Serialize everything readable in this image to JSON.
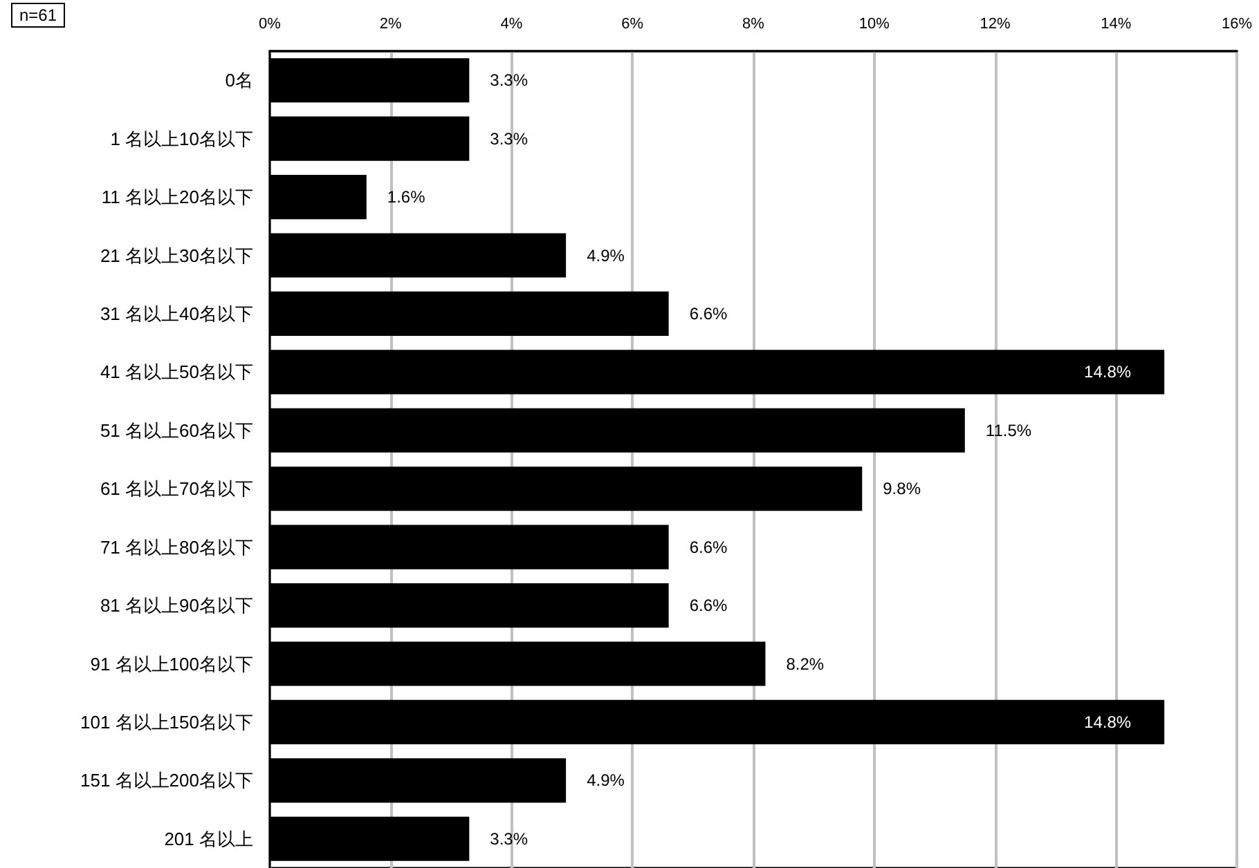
{
  "chart_data": {
    "type": "bar",
    "orientation": "horizontal",
    "categories": [
      "0名",
      "1 名以上10名以下",
      "11 名以上20名以下",
      "21 名以上30名以下",
      "31 名以上40名以下",
      "41 名以上50名以下",
      "51 名以上60名以下",
      "61 名以上70名以下",
      "71 名以上80名以下",
      "81 名以上90名以下",
      "91 名以上100名以下",
      "101 名以上150名以下",
      "151 名以上200名以下",
      "201 名以上"
    ],
    "values": [
      3.3,
      3.3,
      1.6,
      4.9,
      6.6,
      14.8,
      11.5,
      9.8,
      6.6,
      6.6,
      8.2,
      14.8,
      4.9,
      3.3
    ],
    "value_labels": [
      "3.3%",
      "3.3%",
      "1.6%",
      "4.9%",
      "6.6%",
      "14.8%",
      "11.5%",
      "9.8%",
      "6.6%",
      "6.6%",
      "8.2%",
      "14.8%",
      "4.9%",
      "3.3%"
    ],
    "color": "#000000",
    "xlim": [
      0,
      16
    ],
    "xticks": [
      {
        "value": 0,
        "label": "0%"
      },
      {
        "value": 2,
        "label": "2%"
      },
      {
        "value": 4,
        "label": "4%"
      },
      {
        "value": 6,
        "label": "6%"
      },
      {
        "value": 8,
        "label": "8%"
      },
      {
        "value": 10,
        "label": "10%"
      },
      {
        "value": 12,
        "label": "12%"
      },
      {
        "value": 14,
        "label": "14%"
      },
      {
        "value": 16,
        "label": "16%"
      }
    ],
    "grid": "x",
    "annotations": [
      "n=61"
    ]
  }
}
